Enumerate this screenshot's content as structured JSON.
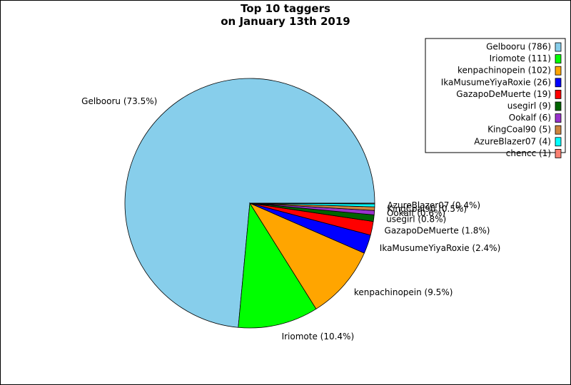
{
  "chart_data": {
    "type": "pie",
    "title": [
      "Top 10 taggers",
      "on January 13th 2019"
    ],
    "legend_position": "top-right",
    "slices": [
      {
        "name": "Gelbooru",
        "value": 786,
        "percent_label": "Gelbooru (73.5%)",
        "legend_label": "Gelbooru (786)",
        "color": "#87CEEB"
      },
      {
        "name": "Iriomote",
        "value": 111,
        "percent_label": "Iriomote (10.4%)",
        "legend_label": "Iriomote (111)",
        "color": "#00FF00"
      },
      {
        "name": "kenpachinopein",
        "value": 102,
        "percent_label": "kenpachinopein (9.5%)",
        "legend_label": "kenpachinopein (102)",
        "color": "#FFA500"
      },
      {
        "name": "IkaMusumeYiyaRoxie",
        "value": 26,
        "percent_label": "IkaMusumeYiyaRoxie (2.4%)",
        "legend_label": "IkaMusumeYiyaRoxie (26)",
        "color": "#0000FF"
      },
      {
        "name": "GazapoDeMuerte",
        "value": 19,
        "percent_label": "GazapoDeMuerte (1.8%)",
        "legend_label": "GazapoDeMuerte (19)",
        "color": "#FF0000"
      },
      {
        "name": "usegirl",
        "value": 9,
        "percent_label": "usegirl (0.8%)",
        "legend_label": "usegirl (9)",
        "color": "#006400"
      },
      {
        "name": "Ookalf",
        "value": 6,
        "percent_label": "Ookalf (0.6%)",
        "legend_label": "Ookalf (6)",
        "color": "#9932CC"
      },
      {
        "name": "KingCoal90",
        "value": 5,
        "percent_label": "KingCoal90 (0.5%)",
        "legend_label": "KingCoal90 (5)",
        "color": "#CD853F"
      },
      {
        "name": "AzureBlazer07",
        "value": 4,
        "percent_label": "AzureBlazer07 (0.4%)",
        "legend_label": "AzureBlazer07 (4)",
        "color": "#00FFFF"
      },
      {
        "name": "chencc",
        "value": 1,
        "percent_label": "",
        "legend_label": "chencc (1)",
        "color": "#FA8072"
      }
    ]
  }
}
